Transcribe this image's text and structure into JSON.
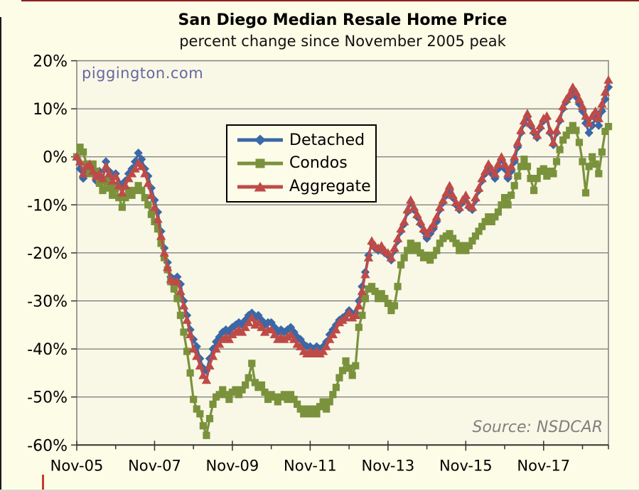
{
  "title": "San Diego Median Resale Home Price",
  "subtitle": "percent change since November 2005 peak",
  "watermark": "piggington.com",
  "source_note": "Source: NSDCAR",
  "legend": {
    "position": "inside-upper-left",
    "items": [
      {
        "label": "Detached",
        "marker": "diamond",
        "color": "#3A68A8"
      },
      {
        "label": "Condos",
        "marker": "square",
        "color": "#7A923C"
      },
      {
        "label": "Aggregate",
        "marker": "triangle",
        "color": "#BE4B48"
      }
    ]
  },
  "colors": {
    "background": "#FDFCE6",
    "plot_background": "#F9F8E6",
    "gridline": "#58585A",
    "plot_border": "#808080",
    "axis": "#333333",
    "tick": "#333333",
    "watermark_text": "#6667A3",
    "source_text": "#808080",
    "detached": "#3A68A8",
    "condos": "#7A923C",
    "aggregate": "#BE4B48"
  },
  "chart_data": {
    "type": "line",
    "title": "San Diego Median Resale Home Price",
    "subtitle": "percent change since November 2005 peak",
    "x_start": "Nov-2005",
    "x_end": "Jul-2019",
    "frequency": "monthly",
    "points_per_series": 165,
    "x_tick_labels": [
      "Nov-05",
      "Nov-07",
      "Nov-09",
      "Nov-11",
      "Nov-13",
      "Nov-15",
      "Nov-17"
    ],
    "x_minor_ticks": "every unlabeled year (Nov-06, Nov-08, ...)",
    "ylim": [
      -60,
      20
    ],
    "ytick_step": 10,
    "ytick_labels": [
      "20%",
      "10%",
      "0%",
      "-10%",
      "-20%",
      "-30%",
      "-40%",
      "-50%",
      "-60%"
    ],
    "y_unit": "%",
    "grid": true,
    "legend_position": "inside-upper-left",
    "series": [
      {
        "name": "Detached",
        "color": "#3A68A8",
        "marker": "diamond",
        "values": [
          0,
          -2.5,
          -4.5,
          -2.5,
          -2,
          -3.5,
          -5,
          -3,
          -4.5,
          -1,
          -3,
          -4.5,
          -3.5,
          -5.5,
          -6.5,
          -5,
          -3.5,
          -2.5,
          -1,
          0.8,
          -0.5,
          -2.5,
          -4,
          -6.5,
          -9,
          -11.5,
          -15.5,
          -19,
          -22,
          -25,
          -25.5,
          -25,
          -26.5,
          -30,
          -33,
          -36,
          -38,
          -39.5,
          -42,
          -44,
          -44.5,
          -42,
          -40,
          -38.5,
          -37.5,
          -36.5,
          -36,
          -36.5,
          -35.5,
          -35,
          -34.5,
          -35,
          -34,
          -33,
          -32.5,
          -33.5,
          -33,
          -34,
          -35,
          -34.5,
          -34.5,
          -35.5,
          -36.5,
          -36,
          -36.5,
          -36,
          -35.5,
          -36.5,
          -37.5,
          -38,
          -39,
          -39.5,
          -39.5,
          -40,
          -39.5,
          -40,
          -39.5,
          -38.5,
          -37,
          -36,
          -35,
          -34,
          -33.5,
          -33,
          -32,
          -33,
          -32.5,
          -30,
          -27,
          -24,
          -20.5,
          -18,
          -19,
          -19.5,
          -19,
          -20,
          -20.5,
          -21.5,
          -19.5,
          -17.5,
          -15.5,
          -14,
          -11.5,
          -9.5,
          -11,
          -12.5,
          -14,
          -15.5,
          -17,
          -16,
          -15,
          -13.5,
          -11,
          -9.5,
          -8,
          -7,
          -8.5,
          -10,
          -11,
          -9.5,
          -8.5,
          -10.5,
          -11,
          -9,
          -7,
          -5,
          -3.5,
          -2.5,
          -3.5,
          -4.5,
          -2.5,
          -0.5,
          -2.5,
          -4.5,
          -3,
          -1,
          2,
          5,
          7,
          8.3,
          6.5,
          5,
          4,
          6,
          7.5,
          8,
          5,
          2.5,
          5,
          7.5,
          10,
          11.5,
          12.5,
          13.5,
          12.5,
          11,
          9.5,
          7,
          5,
          6.5,
          8,
          6.5,
          9.5,
          12,
          14.5
        ]
      },
      {
        "name": "Condos",
        "color": "#7A923C",
        "marker": "square",
        "values": [
          0,
          2,
          1,
          -1.5,
          -3.5,
          -1.5,
          -3,
          -5.5,
          -7,
          -5,
          -6.5,
          -8,
          -6.5,
          -8.5,
          -10.5,
          -8.5,
          -7,
          -8,
          -7,
          -6,
          -7,
          -8.5,
          -10,
          -12,
          -13.5,
          -15,
          -18,
          -21,
          -23.5,
          -26,
          -27.5,
          -29.5,
          -33,
          -36.5,
          -40.5,
          -45,
          -50.5,
          -52.5,
          -53.5,
          -56,
          -58,
          -54.5,
          -51.5,
          -50,
          -49.5,
          -48.5,
          -49.5,
          -50.5,
          -49,
          -48.5,
          -49.5,
          -48.5,
          -47.5,
          -46,
          -43,
          -47,
          -48,
          -47.5,
          -49,
          -50.5,
          -49.5,
          -50,
          -51,
          -50,
          -49.5,
          -50.5,
          -49.5,
          -50.5,
          -51.5,
          -52.5,
          -53.5,
          -52.5,
          -53.5,
          -52.5,
          -53.5,
          -52,
          -51,
          -52.5,
          -51,
          -49.5,
          -48,
          -46,
          -44.5,
          -42.5,
          -44,
          -45.5,
          -43.5,
          -35.5,
          -33,
          -29.5,
          -27.5,
          -27,
          -28,
          -29.5,
          -28.5,
          -29.5,
          -30.5,
          -32,
          -31,
          -27,
          -22.5,
          -21,
          -19.5,
          -18,
          -19.5,
          -18.5,
          -20,
          -21,
          -20.5,
          -21.5,
          -20.5,
          -19.5,
          -18,
          -17,
          -16.5,
          -16,
          -17,
          -18,
          -19.5,
          -18.5,
          -19.5,
          -18.5,
          -17.5,
          -16.5,
          -15.5,
          -14.5,
          -13.5,
          -12.5,
          -13.5,
          -12.5,
          -11.5,
          -10,
          -8.5,
          -10,
          -8,
          -6,
          -4,
          -2,
          -0.5,
          -2,
          -4.5,
          -7,
          -4.5,
          -3,
          -2.5,
          -4,
          -3,
          -3.5,
          -1,
          1.5,
          3.5,
          4.5,
          5.5,
          6.5,
          5.5,
          3,
          -1,
          -7.5,
          -2,
          0,
          -1.5,
          -3.5,
          1,
          5.3,
          6.3
        ]
      },
      {
        "name": "Aggregate",
        "color": "#BE4B48",
        "marker": "triangle",
        "values": [
          0,
          -1,
          -3.5,
          -2,
          -1.5,
          -3,
          -4,
          -3.5,
          -4.5,
          -2,
          -3.5,
          -5,
          -4,
          -6,
          -7.5,
          -6,
          -4.5,
          -3.5,
          -2.5,
          -1.3,
          -2,
          -3.5,
          -5.5,
          -8,
          -10.5,
          -13,
          -16.5,
          -20,
          -23,
          -25.5,
          -26,
          -26,
          -28,
          -31,
          -34,
          -37,
          -40,
          -41.5,
          -43.5,
          -45.5,
          -46.5,
          -43.5,
          -41.5,
          -40,
          -39,
          -38,
          -37.5,
          -38,
          -37,
          -36.5,
          -36,
          -36.5,
          -35.5,
          -34.5,
          -33.5,
          -35,
          -34.5,
          -35.5,
          -36.5,
          -36,
          -36,
          -37,
          -38,
          -37.5,
          -38,
          -37.5,
          -37,
          -38,
          -39,
          -39.5,
          -40.5,
          -41,
          -40.5,
          -41,
          -40.5,
          -41,
          -40.5,
          -39.5,
          -38,
          -37,
          -36,
          -34.5,
          -34,
          -33.5,
          -32.5,
          -33.5,
          -33,
          -31,
          -28,
          -24.5,
          -21,
          -17.5,
          -18.5,
          -19,
          -18.5,
          -19.5,
          -20,
          -21,
          -19,
          -17,
          -15,
          -13.5,
          -11,
          -9,
          -10.5,
          -12,
          -13.5,
          -15,
          -16,
          -15,
          -14,
          -12.5,
          -10.5,
          -9,
          -7.5,
          -6,
          -8,
          -9.5,
          -10.5,
          -9,
          -8,
          -10,
          -10.5,
          -8.5,
          -6.5,
          -4.5,
          -3,
          -1.5,
          -2.5,
          -3.5,
          -1.5,
          0,
          -1.5,
          -3.5,
          -2,
          0,
          3,
          5.5,
          7.5,
          9,
          7,
          5.5,
          4.5,
          6.5,
          8,
          8.5,
          5.5,
          3,
          5.5,
          8,
          10.5,
          12,
          13,
          14.5,
          13.5,
          12,
          10.5,
          8.5,
          7,
          8.5,
          9.5,
          8,
          11,
          13.5,
          16
        ]
      }
    ]
  }
}
